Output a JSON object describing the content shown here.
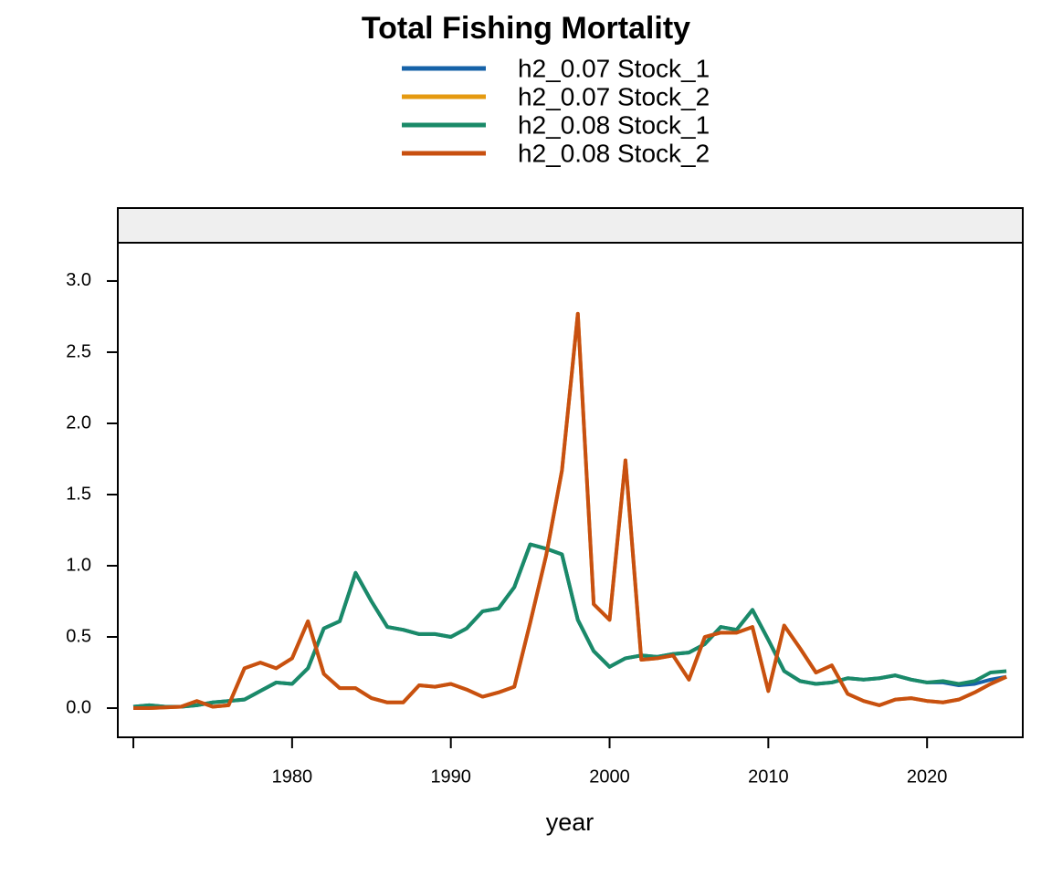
{
  "chart_data": {
    "type": "line",
    "title": "Total Fishing Mortality",
    "x_label": "year",
    "x": [
      1970,
      1971,
      1972,
      1973,
      1974,
      1975,
      1976,
      1977,
      1978,
      1979,
      1980,
      1981,
      1982,
      1983,
      1984,
      1985,
      1986,
      1987,
      1988,
      1989,
      1990,
      1991,
      1992,
      1993,
      1994,
      1995,
      1996,
      1997,
      1998,
      1999,
      2000,
      2001,
      2002,
      2003,
      2004,
      2005,
      2006,
      2007,
      2008,
      2009,
      2010,
      2011,
      2012,
      2013,
      2014,
      2015,
      2016,
      2017,
      2018,
      2019,
      2020,
      2021,
      2022,
      2023,
      2024,
      2025
    ],
    "series": [
      {
        "name": "h2_0.07 Stock_1",
        "color": "#1662a8",
        "values": [
          0.01,
          0.02,
          0.01,
          0.01,
          0.02,
          0.04,
          0.05,
          0.06,
          0.12,
          0.18,
          0.17,
          0.28,
          0.56,
          0.61,
          0.95,
          0.75,
          0.57,
          0.55,
          0.52,
          0.52,
          0.5,
          0.56,
          0.68,
          0.7,
          0.85,
          1.15,
          1.12,
          1.08,
          0.62,
          0.4,
          0.29,
          0.35,
          0.37,
          0.36,
          0.38,
          0.39,
          0.45,
          0.57,
          0.55,
          0.69,
          0.48,
          0.26,
          0.19,
          0.17,
          0.18,
          0.21,
          0.2,
          0.21,
          0.23,
          0.2,
          0.18,
          0.18,
          0.16,
          0.17,
          0.2,
          0.22
        ]
      },
      {
        "name": "h2_0.07 Stock_2",
        "color": "#e59a10",
        "values": [
          0,
          0,
          0.005,
          0.01,
          0.05,
          0.01,
          0.02,
          0.28,
          0.32,
          0.28,
          0.35,
          0.61,
          0.24,
          0.14,
          0.14,
          0.07,
          0.04,
          0.04,
          0.16,
          0.15,
          0.17,
          0.13,
          0.08,
          0.11,
          0.15,
          0.6,
          1.07,
          1.67,
          2.77,
          0.73,
          0.62,
          1.74,
          0.34,
          0.35,
          0.37,
          0.2,
          0.5,
          0.53,
          0.53,
          0.57,
          0.12,
          0.58,
          0.42,
          0.25,
          0.3,
          0.1,
          0.05,
          0.02,
          0.06,
          0.07,
          0.05,
          0.04,
          0.06,
          0.11,
          0.17,
          0.22
        ]
      },
      {
        "name": "h2_0.08 Stock_1",
        "color": "#1a8a68",
        "values": [
          0.01,
          0.02,
          0.01,
          0.01,
          0.02,
          0.04,
          0.05,
          0.06,
          0.12,
          0.18,
          0.17,
          0.28,
          0.56,
          0.61,
          0.95,
          0.75,
          0.57,
          0.55,
          0.52,
          0.52,
          0.5,
          0.56,
          0.68,
          0.7,
          0.85,
          1.15,
          1.12,
          1.08,
          0.62,
          0.4,
          0.29,
          0.35,
          0.37,
          0.36,
          0.38,
          0.39,
          0.45,
          0.57,
          0.55,
          0.69,
          0.48,
          0.26,
          0.19,
          0.17,
          0.18,
          0.21,
          0.2,
          0.21,
          0.23,
          0.2,
          0.18,
          0.19,
          0.17,
          0.19,
          0.25,
          0.26
        ]
      },
      {
        "name": "h2_0.08 Stock_2",
        "color": "#c85010",
        "values": [
          0,
          0,
          0.005,
          0.01,
          0.05,
          0.01,
          0.02,
          0.28,
          0.32,
          0.28,
          0.35,
          0.61,
          0.24,
          0.14,
          0.14,
          0.07,
          0.04,
          0.04,
          0.16,
          0.15,
          0.17,
          0.13,
          0.08,
          0.11,
          0.15,
          0.6,
          1.07,
          1.67,
          2.77,
          0.73,
          0.62,
          1.74,
          0.34,
          0.35,
          0.37,
          0.2,
          0.5,
          0.53,
          0.53,
          0.57,
          0.12,
          0.58,
          0.42,
          0.25,
          0.3,
          0.1,
          0.05,
          0.02,
          0.06,
          0.07,
          0.05,
          0.04,
          0.06,
          0.11,
          0.17,
          0.22
        ]
      }
    ],
    "xlim": [
      1969.02,
      2026.03
    ],
    "ylim": [
      -0.205,
      3.269
    ],
    "xticks": [
      {
        "value": 1970,
        "label": null
      },
      1980,
      1990,
      2000,
      2010,
      2020
    ],
    "yticks": [
      {
        "value": 0,
        "label": "0.0"
      },
      {
        "value": 0.5,
        "label": "0.5"
      },
      {
        "value": 1,
        "label": "1.0"
      },
      {
        "value": 1.5,
        "label": "1.5"
      },
      {
        "value": 2,
        "label": "2.0"
      },
      {
        "value": 2.5,
        "label": "2.5"
      },
      {
        "value": 3,
        "label": "3.0"
      }
    ],
    "grid": false
  }
}
